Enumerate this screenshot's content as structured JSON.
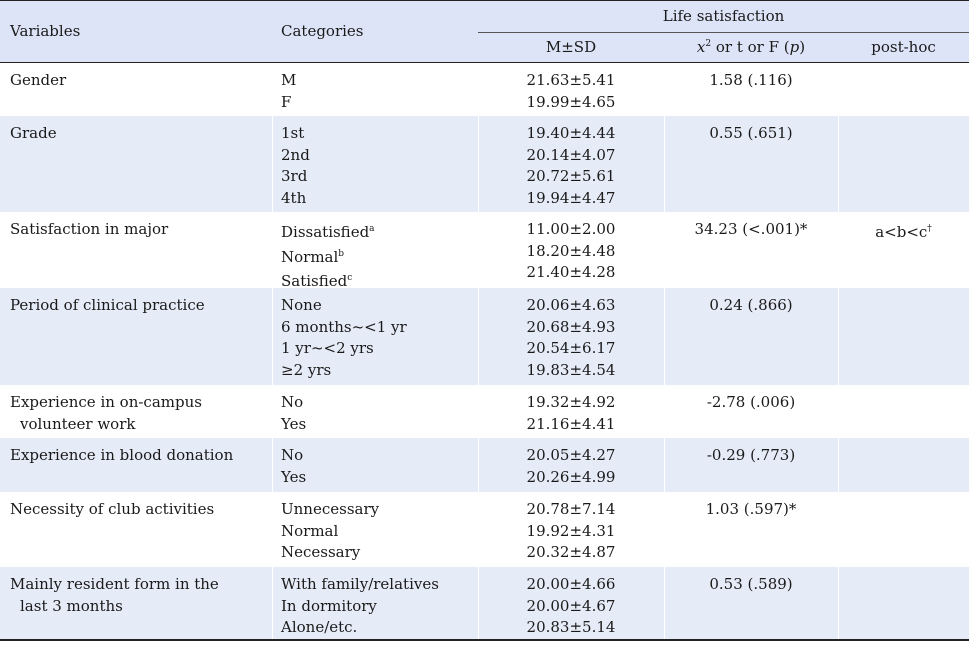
{
  "header": {
    "variables": "Variables",
    "categories": "Categories",
    "group": "Life satisfaction",
    "msd": "M±SD",
    "stat_x": "x",
    "stat_sq": "2",
    "stat_rest": " or t or F (",
    "stat_p": "p",
    "stat_close": ")",
    "posthoc": "post-hoc"
  },
  "rows": [
    {
      "variable": [
        "Gender"
      ],
      "categories": [
        "M",
        "F"
      ],
      "msd": [
        "21.63±5.41",
        "19.99±4.65"
      ],
      "stat": "1.58 (.116)",
      "posthoc": ""
    },
    {
      "variable": [
        "Grade"
      ],
      "categories": [
        "1st",
        "2nd",
        "3rd",
        "4th"
      ],
      "msd": [
        "19.40±4.44",
        "20.14±4.07",
        "20.72±5.61",
        "19.94±4.47"
      ],
      "stat": "0.55 (.651)",
      "posthoc": ""
    },
    {
      "variable": [
        "Satisfaction in major"
      ],
      "categories": [
        "Dissatisfied",
        "Normal",
        "Satisfied"
      ],
      "sups": [
        "a",
        "b",
        "c"
      ],
      "msd": [
        "11.00±2.00",
        "18.20±4.48",
        "21.40±4.28"
      ],
      "stat": "34.23 (<.001)*",
      "posthoc": "a<b<c",
      "posthoc_sup": "†"
    },
    {
      "variable": [
        "Period of clinical  practice"
      ],
      "categories": [
        "None",
        "6 months~<1 yr",
        "1 yr~<2 yrs",
        "≥2 yrs"
      ],
      "msd": [
        "20.06±4.63",
        "20.68±4.93",
        "20.54±6.17",
        "19.83±4.54"
      ],
      "stat": "0.24 (.866)",
      "posthoc": ""
    },
    {
      "variable": [
        "Experience in on-campus",
        "volunteer work"
      ],
      "categories": [
        "No",
        "Yes"
      ],
      "msd": [
        "19.32±4.92",
        "21.16±4.41"
      ],
      "stat": "-2.78 (.006)",
      "posthoc": ""
    },
    {
      "variable": [
        "Experience in blood donation"
      ],
      "categories": [
        "No",
        "Yes"
      ],
      "msd": [
        "20.05±4.27",
        "20.26±4.99"
      ],
      "stat": "-0.29 (.773)",
      "posthoc": ""
    },
    {
      "variable": [
        "Necessity of club activities"
      ],
      "categories": [
        "Unnecessary",
        "Normal",
        "Necessary"
      ],
      "msd": [
        "20.78±7.14",
        "19.92±4.31",
        "20.32±4.87"
      ],
      "stat": "1.03 (.597)*",
      "posthoc": ""
    },
    {
      "variable": [
        "Mainly resident form in the",
        "last 3 months"
      ],
      "categories": [
        "With family/relatives",
        "In dormitory",
        "Alone/etc."
      ],
      "msd": [
        "20.00±4.66",
        "20.00±4.67",
        "20.83±5.14"
      ],
      "stat": "0.53 (.589)",
      "posthoc": ""
    }
  ],
  "colors": {
    "header_bg": "#dde4f7",
    "shade_bg": "#e6ebf8",
    "rule": "#222222"
  }
}
